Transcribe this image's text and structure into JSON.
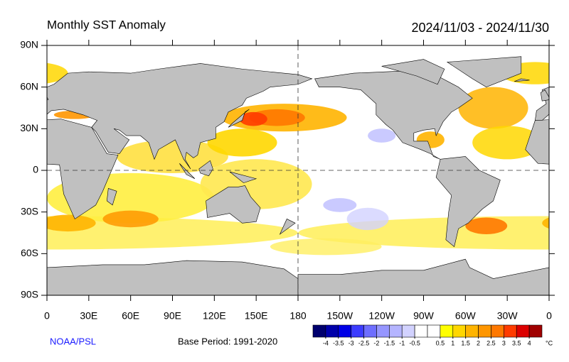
{
  "map": {
    "title": "Monthly SST Anomaly",
    "date_range": "2024/11/03 - 2024/11/30",
    "xticks": [
      0,
      {
        "value": 30,
        "label": "30E"
      },
      {
        "value": 60,
        "label": "60E"
      },
      {
        "value": 90,
        "label": "90E"
      },
      {
        "value": 120,
        "label": "120E"
      },
      {
        "value": 150,
        "label": "150E"
      },
      180,
      {
        "value": 210,
        "label": "150W"
      },
      {
        "value": 240,
        "label": "120W"
      },
      {
        "value": 270,
        "label": "90W"
      },
      {
        "value": 300,
        "label": "60W"
      },
      {
        "value": 330,
        "label": "30W"
      },
      {
        "value": 360,
        "label": "0"
      }
    ],
    "xlim": [
      0,
      360
    ],
    "yticks": [
      {
        "value": 90,
        "label": "90N"
      },
      {
        "value": 60,
        "label": "60N"
      },
      {
        "value": 30,
        "label": "30N"
      },
      0,
      {
        "value": -30,
        "label": "30S"
      },
      {
        "value": -60,
        "label": "60S"
      },
      {
        "value": -90,
        "label": "90S"
      }
    ],
    "ylim": [
      -90,
      90
    ],
    "source": "NOAA/PSL",
    "base_period": "Base Period: 1991-2020",
    "colorbar": {
      "colors": [
        "#00006e",
        "#0000aa",
        "#0000e6",
        "#3c3cff",
        "#6e6eff",
        "#9696ff",
        "#b4b4ff",
        "#d2d2ff",
        "#ffffff",
        "#ffffff",
        "#ffff00",
        "#ffd700",
        "#ffb400",
        "#ff9600",
        "#ff7800",
        "#ff3c00",
        "#dc0000",
        "#a00000"
      ],
      "range": [
        -4.5,
        4.5
      ],
      "ticks": [
        -4,
        -3.5,
        -3,
        -2.5,
        -2,
        -1.5,
        -1,
        -0.5,
        0.5,
        1,
        1.5,
        2,
        2.5,
        3,
        3.5,
        4
      ],
      "unit": "°C"
    }
  }
}
